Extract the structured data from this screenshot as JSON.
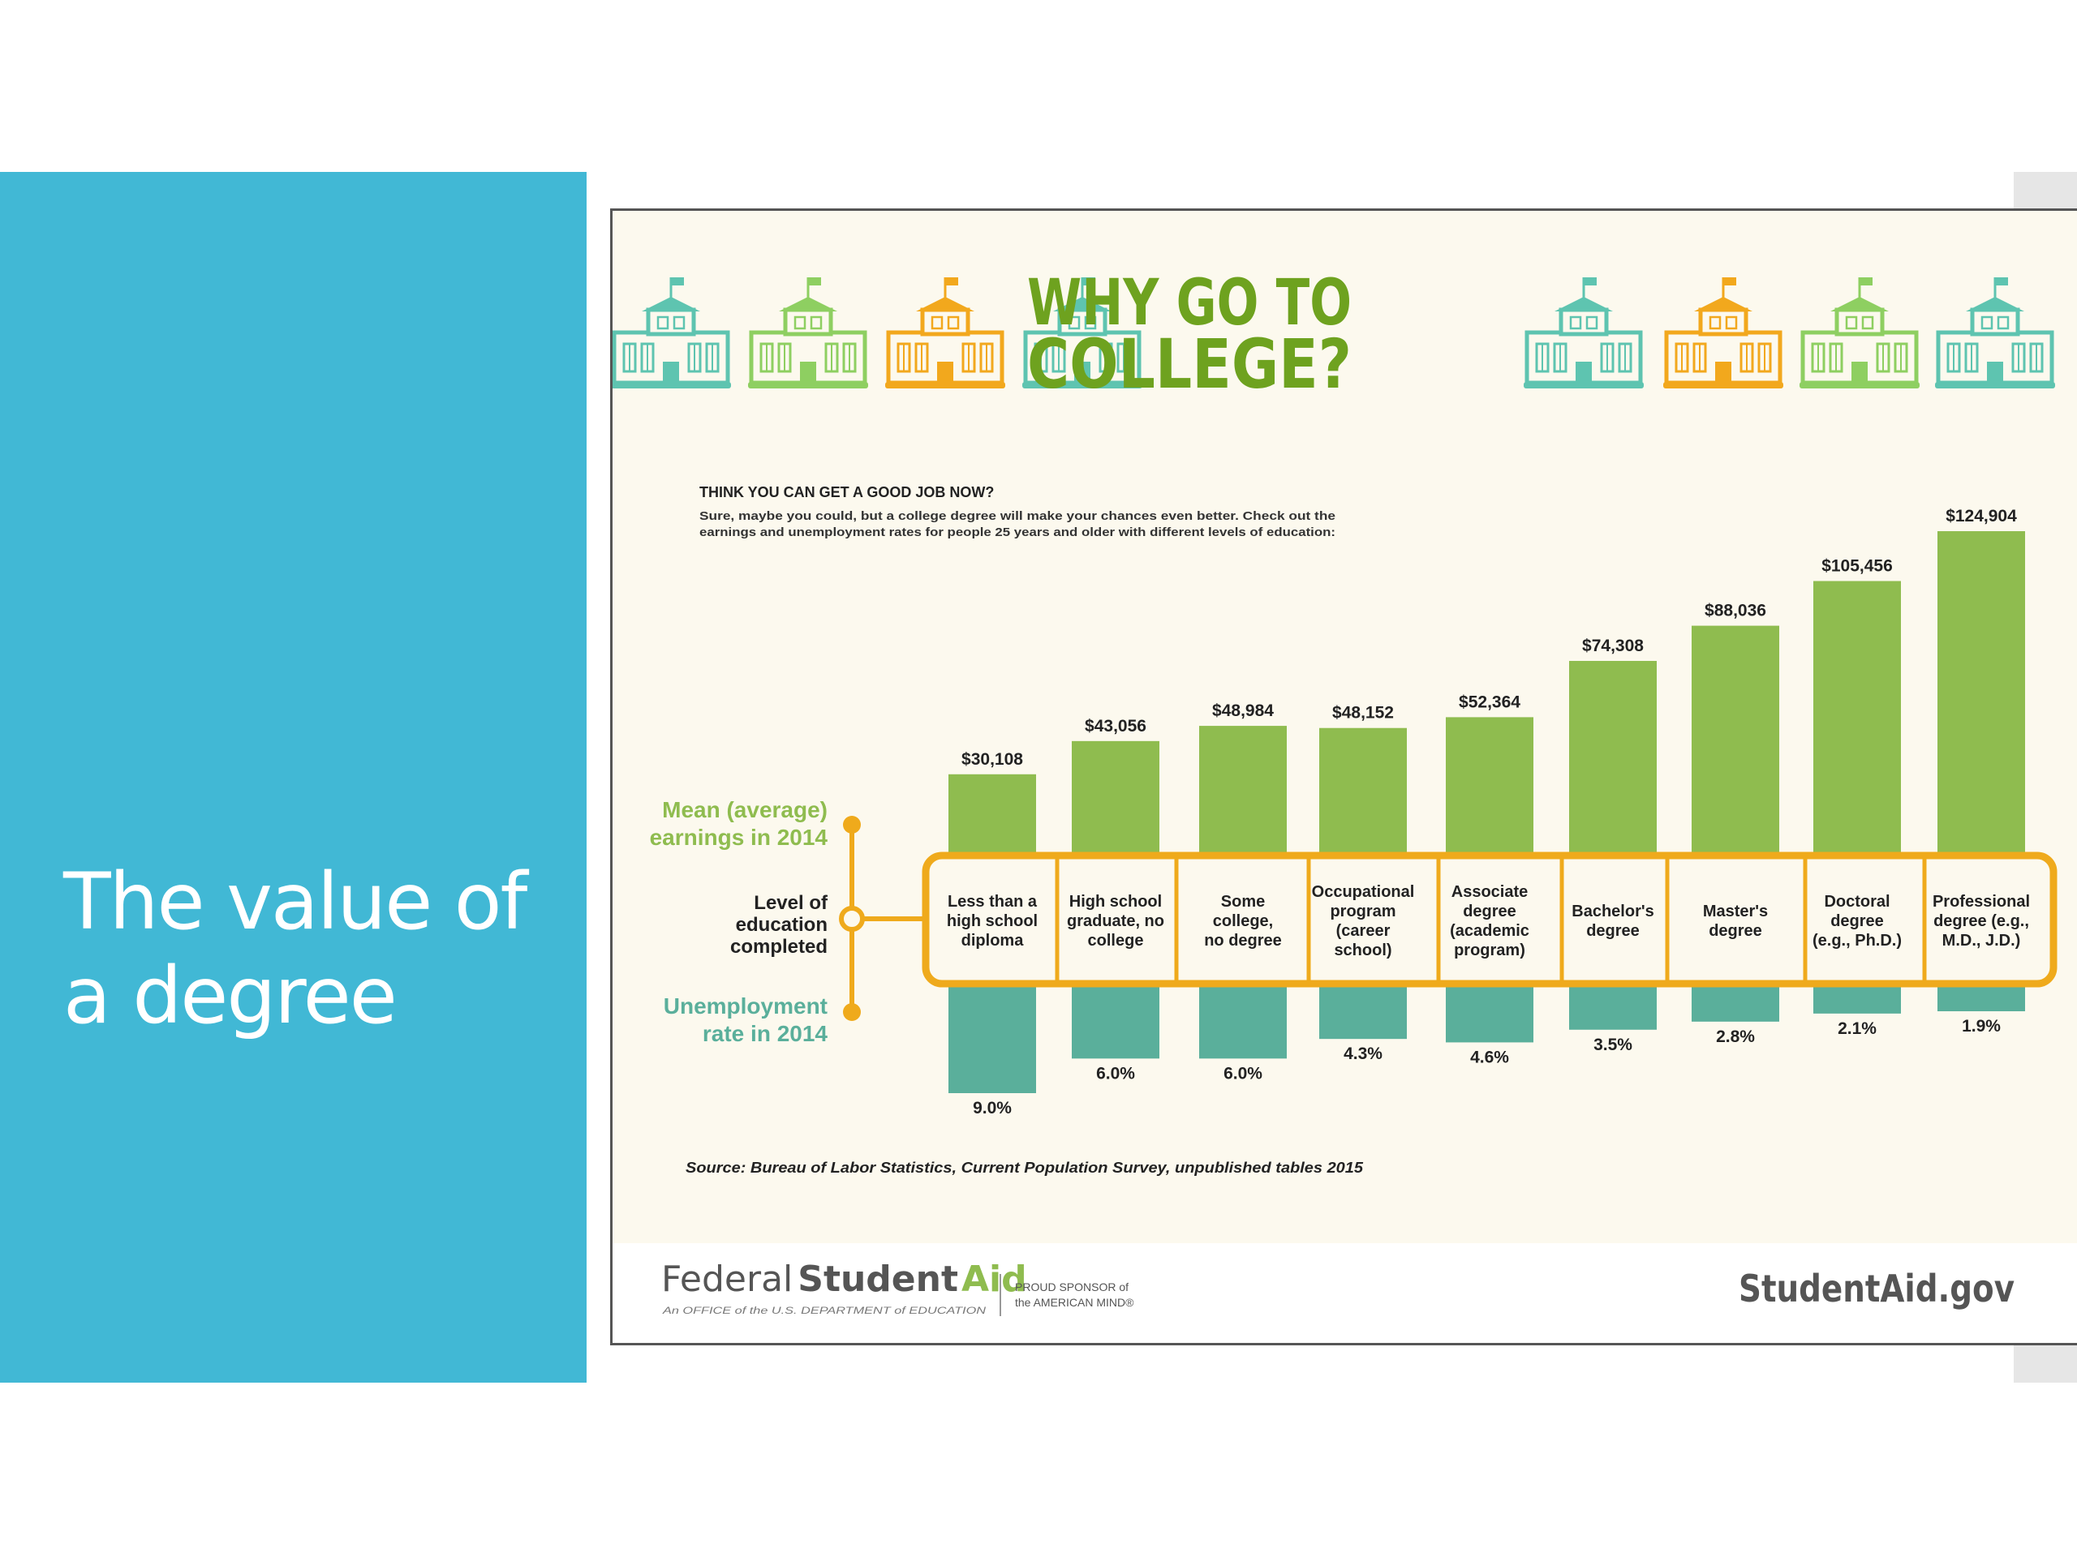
{
  "slide": {
    "title_line1": "The value of",
    "title_line2": "a degree"
  },
  "infographic": {
    "title_line1": "WHY GO TO",
    "title_line2": "COLLEGE?",
    "subheading": "THINK YOU CAN GET A GOOD JOB NOW?",
    "intro_line1": "Sure, maybe you could, but a college degree will make your chances even better. Check out the",
    "intro_line2": "earnings and unemployment rates for people 25 years and older with different levels of education:",
    "legend_earnings_line1": "Mean (average)",
    "legend_earnings_line2": "earnings in 2014",
    "legend_level_line1": "Level of",
    "legend_level_line2": "education",
    "legend_level_line3": "completed",
    "legend_unemp_line1": "Unemployment",
    "legend_unemp_line2": "rate in 2014",
    "source": "Source: Bureau of Labor Statistics, Current Population Survey, unpublished tables 2015",
    "footer_brand_federal": "Federal",
    "footer_brand_student": "Student",
    "footer_brand_aid": "Aid",
    "footer_office": "An OFFICE of the U.S. DEPARTMENT of EDUCATION",
    "footer_sponsor_line1": "PROUD SPONSOR of",
    "footer_sponsor_line2": "the AMERICAN MIND®",
    "footer_site": "StudentAid.gov"
  },
  "colors": {
    "slide_panel": "#41b8d5",
    "earnings_bar": "#8fbc4f",
    "unemployment_bar": "#5aaf9b",
    "category_outline": "#efaa1c",
    "title_green": "#6ea21f",
    "legend_green": "#8fbc4f",
    "legend_teal": "#5aaf9b",
    "building_teal": "#5ec4b0",
    "building_green": "#8ecf61",
    "building_orange": "#f2a81d"
  },
  "icons": [
    "school-building-icon",
    "school-building-icon",
    "school-building-icon",
    "school-building-icon",
    "school-building-icon",
    "school-building-icon",
    "school-building-icon",
    "school-building-icon"
  ],
  "chart_data": {
    "type": "bar",
    "categories": [
      [
        "Less than a",
        "high school",
        "diploma"
      ],
      [
        "High school",
        "graduate, no",
        "college"
      ],
      [
        "Some",
        "college,",
        "no degree"
      ],
      [
        "Occupational",
        "program",
        "(career",
        "school)"
      ],
      [
        "Associate",
        "degree",
        "(academic",
        "program)"
      ],
      [
        "Bachelor's",
        "degree"
      ],
      [
        "Master's",
        "degree"
      ],
      [
        "Doctoral",
        "degree",
        "(e.g., Ph.D.)"
      ],
      [
        "Professional",
        "degree (e.g.,",
        "M.D., J.D.)"
      ]
    ],
    "series": [
      {
        "name": "Mean (average) earnings in 2014",
        "values": [
          30108,
          43056,
          48984,
          48152,
          52364,
          74308,
          88036,
          105456,
          124904
        ],
        "labels": [
          "$30,108",
          "$43,056",
          "$48,984",
          "$48,152",
          "$52,364",
          "$74,308",
          "$88,036",
          "$105,456",
          "$124,904"
        ]
      },
      {
        "name": "Unemployment rate in 2014",
        "values": [
          9.0,
          6.0,
          6.0,
          4.3,
          4.6,
          3.5,
          2.8,
          2.1,
          1.9
        ],
        "labels": [
          "9.0%",
          "6.0%",
          "6.0%",
          "4.3%",
          "4.6%",
          "3.5%",
          "2.8%",
          "2.1%",
          "1.9%"
        ]
      }
    ],
    "title": "WHY GO TO COLLEGE?",
    "xlabel": "Level of education completed",
    "ylabel": "",
    "grid": false
  }
}
